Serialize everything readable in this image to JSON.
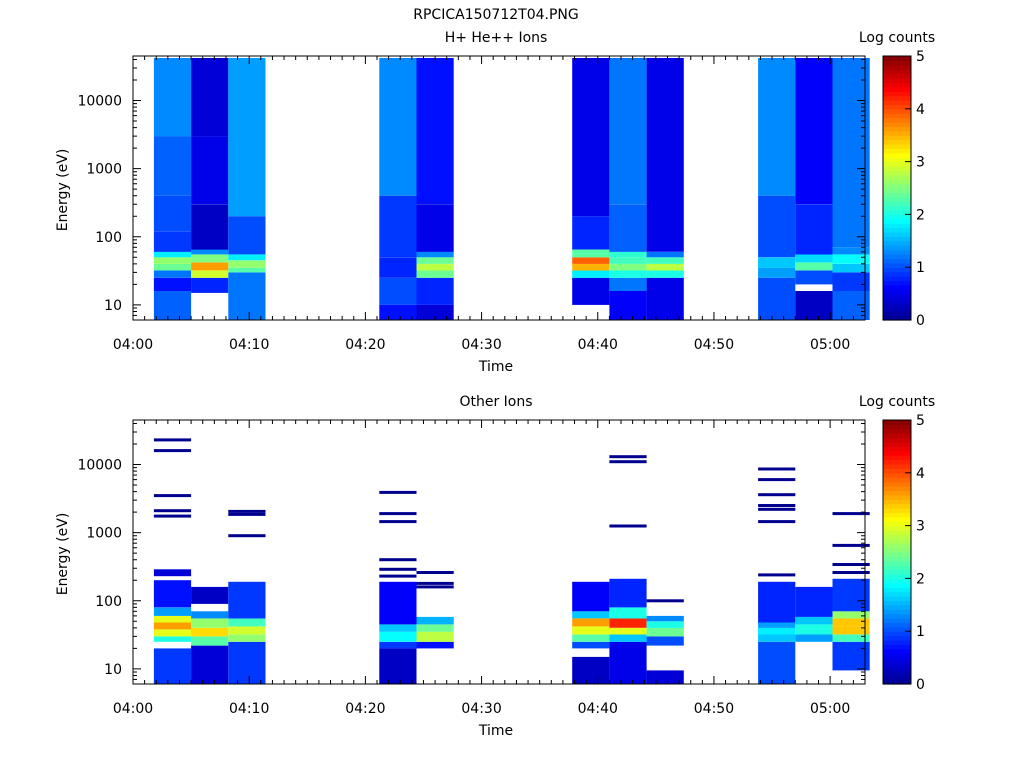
{
  "page_title": "RPCICA150712T04.PNG",
  "colors": {
    "colormap": [
      "#00008f",
      "#0000ff",
      "#0080ff",
      "#00ffff",
      "#80ff80",
      "#ffff00",
      "#ff8000",
      "#ff0000",
      "#800000"
    ],
    "axis": "#000000",
    "background": "#ffffff"
  },
  "chart_data": [
    {
      "type": "heatmap",
      "title": "H+ He++ Ions",
      "xlabel": "Time",
      "ylabel": "Energy (eV)",
      "y_scale": "log",
      "ylim": [
        6,
        45000
      ],
      "xlim": [
        "04:00",
        "05:03"
      ],
      "x_ticks": [
        "04:00",
        "04:10",
        "04:20",
        "04:30",
        "04:40",
        "04:50",
        "05:00"
      ],
      "y_ticks": [
        "10",
        "100",
        "1000",
        "10000"
      ],
      "colorbar": {
        "label": "Log counts",
        "range": [
          0,
          5
        ],
        "ticks": [
          "0",
          "1",
          "2",
          "3",
          "4",
          "5"
        ]
      },
      "grid": false,
      "legend": "colorbar-right",
      "columns": [
        {
          "start": "04:01.8",
          "end": "04:05.0",
          "emin": 6,
          "emax": 42000,
          "bands": [
            {
              "lo": 6,
              "hi": 16,
              "v": 1.1
            },
            {
              "lo": 16,
              "hi": 25,
              "v": 0.7
            },
            {
              "lo": 25,
              "hi": 32,
              "v": 1.2
            },
            {
              "lo": 32,
              "hi": 40,
              "v": 2.4
            },
            {
              "lo": 40,
              "hi": 50,
              "v": 2.6
            },
            {
              "lo": 50,
              "hi": 60,
              "v": 1.8
            },
            {
              "lo": 60,
              "hi": 120,
              "v": 0.9
            },
            {
              "lo": 120,
              "hi": 400,
              "v": 1.0
            },
            {
              "lo": 400,
              "hi": 3000,
              "v": 1.1
            },
            {
              "lo": 3000,
              "hi": 42000,
              "v": 1.3
            }
          ]
        },
        {
          "start": "04:05.0",
          "end": "04:08.2",
          "emin": 6,
          "emax": 42000,
          "bands": [
            {
              "lo": 15,
              "hi": 25,
              "v": 0.8
            },
            {
              "lo": 25,
              "hi": 32,
              "v": 2.9
            },
            {
              "lo": 32,
              "hi": 42,
              "v": 3.6
            },
            {
              "lo": 42,
              "hi": 55,
              "v": 2.5
            },
            {
              "lo": 55,
              "hi": 65,
              "v": 1.3
            },
            {
              "lo": 65,
              "hi": 300,
              "v": 0.3
            },
            {
              "lo": 300,
              "hi": 3000,
              "v": 0.5
            },
            {
              "lo": 3000,
              "hi": 42000,
              "v": 0.4
            }
          ]
        },
        {
          "start": "04:08.2",
          "end": "04:11.4",
          "emin": 6,
          "emax": 42000,
          "bands": [
            {
              "lo": 6,
              "hi": 30,
              "v": 1.2
            },
            {
              "lo": 30,
              "hi": 35,
              "v": 2.3
            },
            {
              "lo": 35,
              "hi": 45,
              "v": 2.6
            },
            {
              "lo": 45,
              "hi": 55,
              "v": 1.8
            },
            {
              "lo": 55,
              "hi": 200,
              "v": 1.0
            },
            {
              "lo": 200,
              "hi": 42000,
              "v": 1.4
            }
          ]
        },
        {
          "start": "04:21.2",
          "end": "04:24.4",
          "emin": 6,
          "emax": 42000,
          "bands": [
            {
              "lo": 6,
              "hi": 10,
              "v": 0.7
            },
            {
              "lo": 10,
              "hi": 25,
              "v": 1.0
            },
            {
              "lo": 25,
              "hi": 50,
              "v": 0.8
            },
            {
              "lo": 50,
              "hi": 400,
              "v": 0.9
            },
            {
              "lo": 400,
              "hi": 42000,
              "v": 1.3
            }
          ]
        },
        {
          "start": "04:24.4",
          "end": "04:27.6",
          "emin": 6,
          "emax": 42000,
          "bands": [
            {
              "lo": 6,
              "hi": 10,
              "v": 0.4
            },
            {
              "lo": 10,
              "hi": 25,
              "v": 0.8
            },
            {
              "lo": 25,
              "hi": 32,
              "v": 2.4
            },
            {
              "lo": 32,
              "hi": 40,
              "v": 2.8
            },
            {
              "lo": 40,
              "hi": 50,
              "v": 2.4
            },
            {
              "lo": 50,
              "hi": 60,
              "v": 1.3
            },
            {
              "lo": 60,
              "hi": 300,
              "v": 0.5
            },
            {
              "lo": 300,
              "hi": 42000,
              "v": 0.7
            }
          ]
        },
        {
          "start": "04:37.8",
          "end": "04:41.0",
          "emin": 10,
          "emax": 42000,
          "bands": [
            {
              "lo": 10,
              "hi": 25,
              "v": 0.5
            },
            {
              "lo": 25,
              "hi": 32,
              "v": 1.8
            },
            {
              "lo": 32,
              "hi": 40,
              "v": 3.5
            },
            {
              "lo": 40,
              "hi": 50,
              "v": 3.9
            },
            {
              "lo": 50,
              "hi": 65,
              "v": 2.3
            },
            {
              "lo": 65,
              "hi": 200,
              "v": 0.8
            },
            {
              "lo": 200,
              "hi": 42000,
              "v": 0.5
            }
          ]
        },
        {
          "start": "04:41.0",
          "end": "04:44.2",
          "emin": 6,
          "emax": 42000,
          "bands": [
            {
              "lo": 6,
              "hi": 16,
              "v": 0.6
            },
            {
              "lo": 16,
              "hi": 25,
              "v": 1.2
            },
            {
              "lo": 25,
              "hi": 32,
              "v": 2.0
            },
            {
              "lo": 32,
              "hi": 40,
              "v": 2.5
            },
            {
              "lo": 40,
              "hi": 50,
              "v": 2.2
            },
            {
              "lo": 50,
              "hi": 60,
              "v": 2.1
            },
            {
              "lo": 60,
              "hi": 300,
              "v": 1.1
            },
            {
              "lo": 300,
              "hi": 42000,
              "v": 1.2
            }
          ]
        },
        {
          "start": "04:44.2",
          "end": "04:47.4",
          "emin": 6,
          "emax": 42000,
          "bands": [
            {
              "lo": 6,
              "hi": 25,
              "v": 0.5
            },
            {
              "lo": 25,
              "hi": 32,
              "v": 2.0
            },
            {
              "lo": 32,
              "hi": 40,
              "v": 2.8
            },
            {
              "lo": 40,
              "hi": 50,
              "v": 2.2
            },
            {
              "lo": 50,
              "hi": 60,
              "v": 1.2
            },
            {
              "lo": 60,
              "hi": 42000,
              "v": 0.5
            }
          ]
        },
        {
          "start": "04:53.8",
          "end": "04:57.0",
          "emin": 6,
          "emax": 42000,
          "bands": [
            {
              "lo": 6,
              "hi": 25,
              "v": 1.0
            },
            {
              "lo": 25,
              "hi": 35,
              "v": 1.4
            },
            {
              "lo": 35,
              "hi": 50,
              "v": 1.6
            },
            {
              "lo": 50,
              "hi": 400,
              "v": 1.0
            },
            {
              "lo": 400,
              "hi": 42000,
              "v": 1.3
            }
          ]
        },
        {
          "start": "04:57.0",
          "end": "05:00.2",
          "emin": 6,
          "emax": 42000,
          "bands": [
            {
              "lo": 6,
              "hi": 16,
              "v": 0.3
            },
            {
              "lo": 20,
              "hi": 32,
              "v": 1.0
            },
            {
              "lo": 32,
              "hi": 42,
              "v": 2.3
            },
            {
              "lo": 42,
              "hi": 55,
              "v": 1.7
            },
            {
              "lo": 55,
              "hi": 300,
              "v": 0.8
            },
            {
              "lo": 300,
              "hi": 42000,
              "v": 0.6
            }
          ]
        },
        {
          "start": "05:00.2",
          "end": "05:03.4",
          "emin": 6,
          "emax": 42000,
          "bands": [
            {
              "lo": 6,
              "hi": 16,
              "v": 1.1
            },
            {
              "lo": 16,
              "hi": 30,
              "v": 0.9
            },
            {
              "lo": 30,
              "hi": 40,
              "v": 1.6
            },
            {
              "lo": 40,
              "hi": 55,
              "v": 1.9
            },
            {
              "lo": 55,
              "hi": 70,
              "v": 1.3
            },
            {
              "lo": 70,
              "hi": 42000,
              "v": 1.2
            }
          ]
        }
      ]
    },
    {
      "type": "heatmap",
      "title": "Other Ions",
      "xlabel": "Time",
      "ylabel": "Energy (eV)",
      "y_scale": "log",
      "ylim": [
        6,
        45000
      ],
      "xlim": [
        "04:00",
        "05:03"
      ],
      "x_ticks": [
        "04:00",
        "04:10",
        "04:20",
        "04:30",
        "04:40",
        "04:50",
        "05:00"
      ],
      "y_ticks": [
        "10",
        "100",
        "1000",
        "10000"
      ],
      "colorbar": {
        "label": "Log counts",
        "range": [
          0,
          5
        ],
        "ticks": [
          "0",
          "1",
          "2",
          "3",
          "4",
          "5"
        ]
      },
      "grid": false,
      "legend": "colorbar-right",
      "columns": [
        {
          "start": "04:01.8",
          "end": "04:05.0",
          "bands": [
            {
              "lo": 6,
              "hi": 20,
              "v": 0.9
            },
            {
              "lo": 25,
              "hi": 30,
              "v": 2.0
            },
            {
              "lo": 30,
              "hi": 38,
              "v": 3.0
            },
            {
              "lo": 38,
              "hi": 48,
              "v": 3.6
            },
            {
              "lo": 48,
              "hi": 60,
              "v": 3.0
            },
            {
              "lo": 60,
              "hi": 80,
              "v": 1.4
            },
            {
              "lo": 80,
              "hi": 200,
              "v": 0.7
            },
            {
              "lo": 230,
              "hi": 290,
              "v": 0.4
            }
          ],
          "lines": [
            1750,
            2100,
            3500,
            16000,
            23000
          ]
        },
        {
          "start": "04:05.0",
          "end": "04:08.2",
          "bands": [
            {
              "lo": 6,
              "hi": 22,
              "v": 0.4
            },
            {
              "lo": 22,
              "hi": 30,
              "v": 2.3
            },
            {
              "lo": 30,
              "hi": 40,
              "v": 3.3
            },
            {
              "lo": 40,
              "hi": 55,
              "v": 2.6
            },
            {
              "lo": 55,
              "hi": 70,
              "v": 1.3
            },
            {
              "lo": 90,
              "hi": 160,
              "v": 0.3
            }
          ],
          "lines": []
        },
        {
          "start": "04:08.2",
          "end": "04:11.4",
          "bands": [
            {
              "lo": 6,
              "hi": 25,
              "v": 0.9
            },
            {
              "lo": 25,
              "hi": 32,
              "v": 2.6
            },
            {
              "lo": 32,
              "hi": 42,
              "v": 2.9
            },
            {
              "lo": 42,
              "hi": 55,
              "v": 2.2
            },
            {
              "lo": 55,
              "hi": 190,
              "v": 0.9
            }
          ],
          "lines": [
            900,
            1850,
            2050
          ]
        },
        {
          "start": "04:21.2",
          "end": "04:24.4",
          "bands": [
            {
              "lo": 6,
              "hi": 20,
              "v": 0.3
            },
            {
              "lo": 20,
              "hi": 25,
              "v": 0.9
            },
            {
              "lo": 25,
              "hi": 35,
              "v": 1.9
            },
            {
              "lo": 35,
              "hi": 45,
              "v": 1.6
            },
            {
              "lo": 45,
              "hi": 190,
              "v": 0.6
            }
          ],
          "lines": [
            230,
            290,
            400,
            1450,
            1900,
            3900
          ]
        },
        {
          "start": "04:24.4",
          "end": "04:27.6",
          "bands": [
            {
              "lo": 20,
              "hi": 25,
              "v": 0.7
            },
            {
              "lo": 25,
              "hi": 35,
              "v": 2.8
            },
            {
              "lo": 35,
              "hi": 45,
              "v": 2.4
            },
            {
              "lo": 45,
              "hi": 58,
              "v": 1.5
            }
          ],
          "lines": [
            160,
            180,
            260
          ]
        },
        {
          "start": "04:37.8",
          "end": "04:41.0",
          "bands": [
            {
              "lo": 6,
              "hi": 15,
              "v": 0.3
            },
            {
              "lo": 20,
              "hi": 25,
              "v": 1.0
            },
            {
              "lo": 25,
              "hi": 32,
              "v": 2.3
            },
            {
              "lo": 32,
              "hi": 42,
              "v": 3.0
            },
            {
              "lo": 42,
              "hi": 55,
              "v": 3.6
            },
            {
              "lo": 55,
              "hi": 70,
              "v": 1.6
            },
            {
              "lo": 70,
              "hi": 190,
              "v": 0.6
            }
          ],
          "lines": []
        },
        {
          "start": "04:41.0",
          "end": "04:44.2",
          "bands": [
            {
              "lo": 6,
              "hi": 25,
              "v": 0.5
            },
            {
              "lo": 25,
              "hi": 32,
              "v": 1.6
            },
            {
              "lo": 32,
              "hi": 40,
              "v": 3.0
            },
            {
              "lo": 40,
              "hi": 55,
              "v": 4.2
            },
            {
              "lo": 55,
              "hi": 80,
              "v": 2.0
            },
            {
              "lo": 80,
              "hi": 210,
              "v": 0.8
            }
          ],
          "lines": [
            1250,
            11000,
            13000
          ]
        },
        {
          "start": "04:44.2",
          "end": "04:47.4",
          "bands": [
            {
              "lo": 6,
              "hi": 9.5,
              "v": 0.4
            },
            {
              "lo": 22,
              "hi": 30,
              "v": 1.0
            },
            {
              "lo": 30,
              "hi": 40,
              "v": 2.4
            },
            {
              "lo": 40,
              "hi": 50,
              "v": 2.0
            },
            {
              "lo": 50,
              "hi": 60,
              "v": 1.3
            }
          ],
          "lines": [
            100
          ]
        },
        {
          "start": "04:53.8",
          "end": "04:57.0",
          "bands": [
            {
              "lo": 6,
              "hi": 25,
              "v": 1.0
            },
            {
              "lo": 25,
              "hi": 32,
              "v": 1.6
            },
            {
              "lo": 32,
              "hi": 40,
              "v": 1.8
            },
            {
              "lo": 40,
              "hi": 48,
              "v": 1.4
            },
            {
              "lo": 48,
              "hi": 190,
              "v": 0.8
            }
          ],
          "lines": [
            240,
            1450,
            2200,
            2500,
            3600,
            6000,
            8600
          ]
        },
        {
          "start": "04:57.0",
          "end": "05:00.2",
          "bands": [
            {
              "lo": 25,
              "hi": 32,
              "v": 1.4
            },
            {
              "lo": 32,
              "hi": 45,
              "v": 2.0
            },
            {
              "lo": 45,
              "hi": 58,
              "v": 1.6
            },
            {
              "lo": 58,
              "hi": 160,
              "v": 0.8
            }
          ],
          "lines": []
        },
        {
          "start": "05:00.2",
          "end": "05:03.4",
          "bands": [
            {
              "lo": 9.5,
              "hi": 25,
              "v": 0.9
            },
            {
              "lo": 25,
              "hi": 32,
              "v": 2.2
            },
            {
              "lo": 32,
              "hi": 42,
              "v": 3.4
            },
            {
              "lo": 42,
              "hi": 55,
              "v": 3.4
            },
            {
              "lo": 55,
              "hi": 70,
              "v": 2.6
            },
            {
              "lo": 70,
              "hi": 210,
              "v": 0.9
            }
          ],
          "lines": [
            260,
            340,
            650,
            1900
          ]
        }
      ]
    }
  ]
}
